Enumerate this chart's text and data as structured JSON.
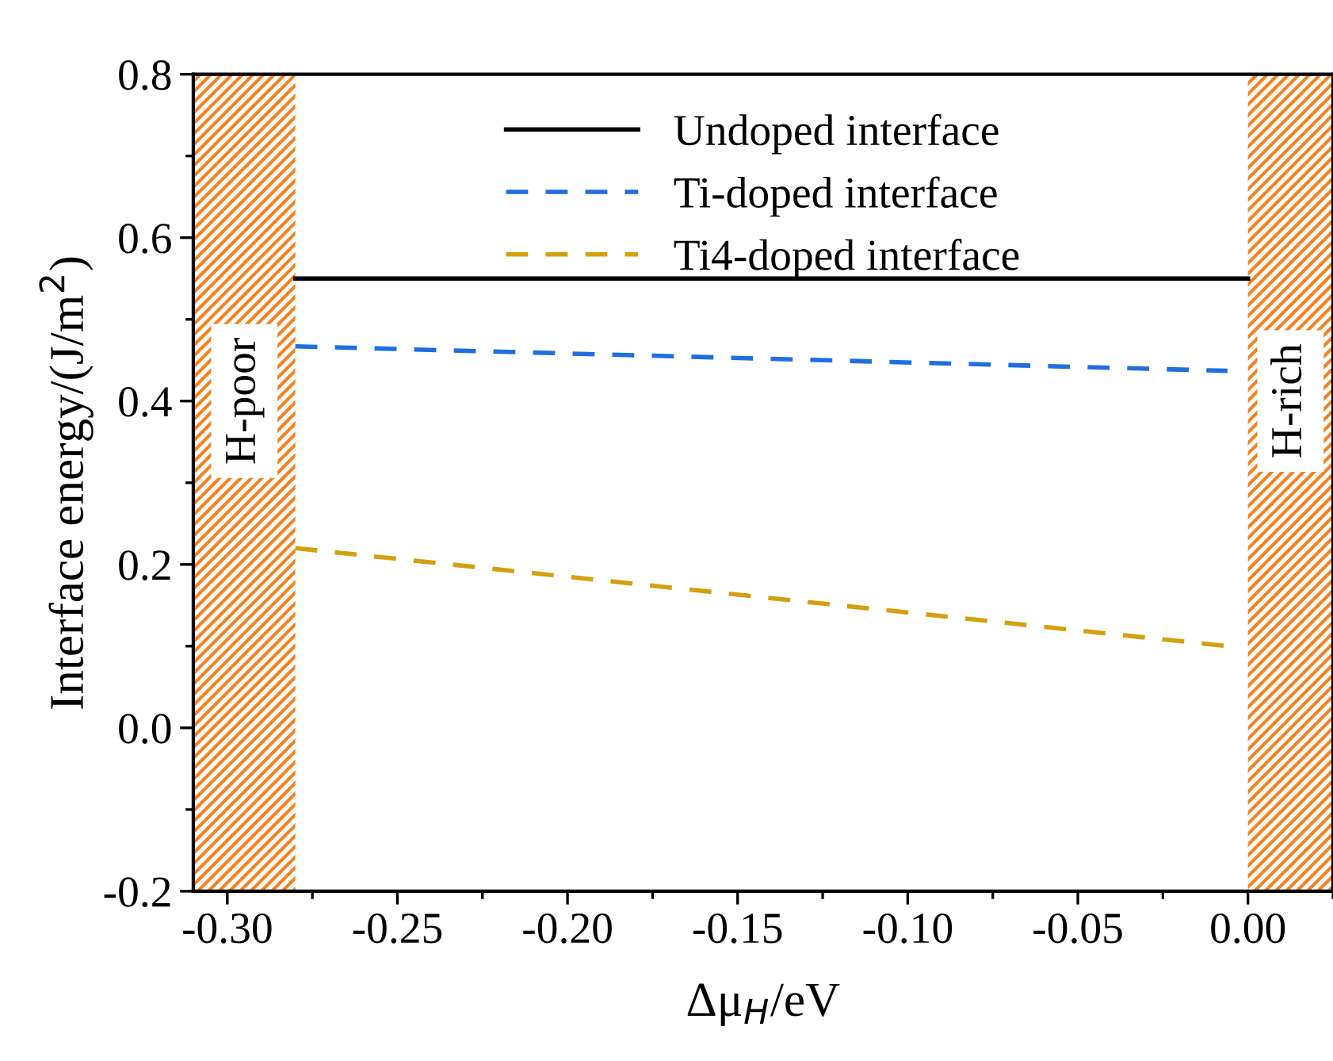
{
  "chart_data": {
    "type": "line",
    "xlabel": "Δμ$_{H}$/eV",
    "ylabel": "Interface energy/(J/m$^{2}$)",
    "xlim": [
      -0.31,
      0.025
    ],
    "ylim": [
      -0.2,
      0.8
    ],
    "xticks": [
      {
        "value": -0.3,
        "label": "-0.30"
      },
      {
        "value": -0.25,
        "label": "-0.25"
      },
      {
        "value": -0.2,
        "label": "-0.20"
      },
      {
        "value": -0.15,
        "label": "-0.15"
      },
      {
        "value": -0.1,
        "label": "-0.10"
      },
      {
        "value": -0.05,
        "label": "-0.05"
      },
      {
        "value": 0,
        "label": "0.00"
      }
    ],
    "yticks": [
      {
        "value": -0.2,
        "label": "-0.2"
      },
      {
        "value": 0,
        "label": "0.0"
      },
      {
        "value": 0.2,
        "label": "0.2"
      },
      {
        "value": 0.4,
        "label": "0.4"
      },
      {
        "value": 0.6,
        "label": "0.6"
      },
      {
        "value": 0.8,
        "label": "0.8"
      }
    ],
    "series": [
      {
        "name": "Undoped interface",
        "color": "#000000",
        "line_style": "solid",
        "x": [
          -0.28,
          0.0
        ],
        "values": [
          0.55,
          0.55
        ]
      },
      {
        "name": "Ti-doped interface",
        "color": "#1f6fe0",
        "line_style": "dashed",
        "x": [
          -0.28,
          -0.006
        ],
        "values": [
          0.467,
          0.437
        ]
      },
      {
        "name": "Ti4-doped interface",
        "color": "#d4a010",
        "line_style": "dashed",
        "x": [
          -0.28,
          -0.006
        ],
        "values": [
          0.22,
          0.1
        ]
      }
    ],
    "bands": [
      {
        "axis": "x",
        "from": -0.31,
        "to": -0.28,
        "label": "H-poor",
        "color": "#f58220"
      },
      {
        "axis": "x",
        "from": 0.0,
        "to": 0.025,
        "label": "H-rich",
        "color": "#f58220"
      }
    ],
    "legend": "top",
    "grid": false
  }
}
